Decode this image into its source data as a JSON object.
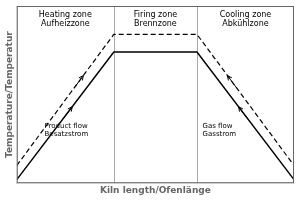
{
  "chart_data": {
    "type": "line",
    "xlabel": "Kiln length/Ofenlänge",
    "ylabel": "Temperature/Temperatur",
    "x": [
      0.0,
      0.35,
      0.65,
      1.0
    ],
    "series": [
      {
        "values": [
          0.02,
          0.74,
          0.74,
          0.02
        ],
        "color": "#000000",
        "line_style": "solid",
        "arrows": [
          {
            "x": 0.175,
            "direction": 1
          },
          {
            "x": 0.825,
            "direction": -1
          }
        ]
      },
      {
        "values": [
          0.1,
          0.84,
          0.84,
          0.1
        ],
        "color": "#000000",
        "line_style": "dashed",
        "arrows": [
          {
            "x": 0.215,
            "direction": 1
          },
          {
            "x": 0.785,
            "direction": -1
          }
        ]
      }
    ],
    "vlines": [
      0.35,
      0.65
    ],
    "zone_labels": [
      {
        "text": "Heating zone\nAufheizzone",
        "x": 0.175,
        "y": 0.97
      },
      {
        "text": "Firing zone\nBrennzone",
        "x": 0.5,
        "y": 0.97
      },
      {
        "text": "Cooling zone\nAbkühlzone",
        "x": 0.825,
        "y": 0.97
      }
    ],
    "flow_labels": [
      {
        "text": "Product flow\nBesatzstrom",
        "x": 0.1,
        "y": 0.3
      },
      {
        "text": "Gas flow\nGasstrom",
        "x": 0.67,
        "y": 0.3
      }
    ],
    "xlim": [
      0,
      1
    ],
    "ylim": [
      0,
      1
    ],
    "xticks": [],
    "yticks": [],
    "tick_labels": false,
    "grid": false
  }
}
